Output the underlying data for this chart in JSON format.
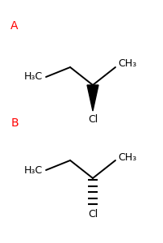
{
  "label_A": "A",
  "label_B": "B",
  "label_color": "#ff0000",
  "bond_color": "#000000",
  "text_color": "#000000",
  "bg_color": "#ffffff",
  "ch3_right_text": "CH₃",
  "h3c_left_text": "H₃C",
  "cl_text": "Cl",
  "fig_width": 2.02,
  "fig_height": 3.0,
  "dpi": 100,
  "fs_label": 9,
  "fs_letter": 10,
  "lw": 1.4
}
